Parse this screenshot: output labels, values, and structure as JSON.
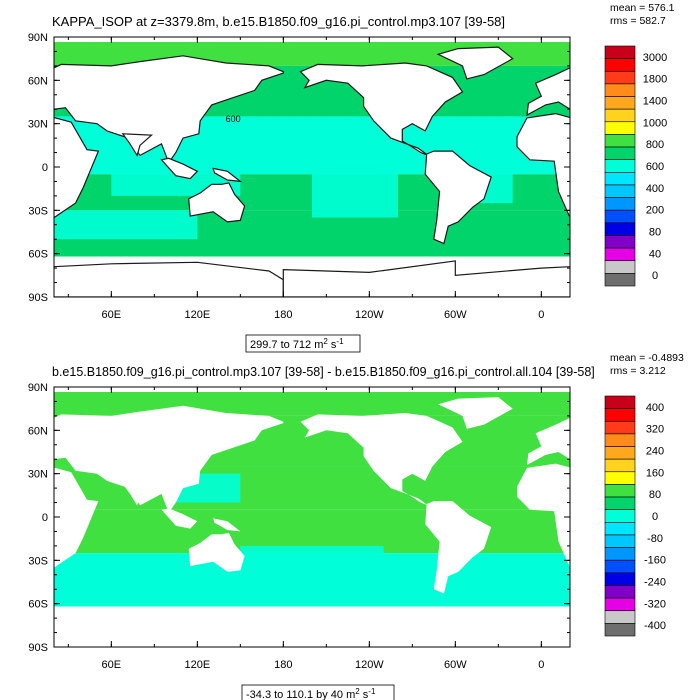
{
  "chart_data": [
    {
      "type": "heatmap",
      "title": "KAPPA_ISOP at z=3379.8m, b.e15.B1850.f09_g16.pi_control.mp3.107 [39-58]",
      "stats": {
        "mean": "mean = 576.1",
        "rms": "rms = 582.7"
      },
      "x_ticks": [
        "60E",
        "120E",
        "180",
        "120W",
        "60W",
        "0"
      ],
      "y_ticks": [
        "90N",
        "60N",
        "30N",
        "0",
        "30S",
        "60S",
        "90S"
      ],
      "contour_label": "600",
      "range_label": "299.7 to 712 m",
      "range_unit_exp": "2",
      "range_unit_s": " s",
      "range_unit_s_exp": "-1",
      "colorbar": {
        "labels": [
          "3000",
          "1800",
          "1400",
          "1000",
          "800",
          "600",
          "400",
          "200",
          "80",
          "40",
          "0"
        ],
        "colors": [
          "#c8001a",
          "#ff0000",
          "#ff3b1a",
          "#ff8c1a",
          "#ffa81e",
          "#ffd21e",
          "#ffff00",
          "#40e040",
          "#00d46a",
          "#00ffd8",
          "#00e6ff",
          "#00c8ff",
          "#0096ff",
          "#0050ff",
          "#0000e6",
          "#8000c8",
          "#e600e6",
          "#c8c8c8",
          "#6e6e6e"
        ]
      },
      "dominant_values": "mostly 400-600 (cyan) and 600-800 (green) over ocean basins; land masked white"
    },
    {
      "type": "heatmap",
      "title": "b.e15.B1850.f09_g16.pi_control.mp3.107 [39-58] - b.e15.B1850.f09_g16.pi_control.all.104 [39-58]",
      "stats": {
        "mean": "mean = -0.4893",
        "rms": "rms = 3.212"
      },
      "x_ticks": [
        "60E",
        "120E",
        "180",
        "120W",
        "60W",
        "0"
      ],
      "y_ticks": [
        "90N",
        "60N",
        "30N",
        "0",
        "30S",
        "60S",
        "90S"
      ],
      "range_label": "-34.3 to 110.1 by 40 m",
      "range_unit_exp": "2",
      "range_unit_s": " s",
      "range_unit_s_exp": "-1",
      "colorbar": {
        "labels": [
          "400",
          "320",
          "240",
          "160",
          "80",
          "0",
          "-80",
          "-160",
          "-240",
          "-320",
          "-400"
        ],
        "colors": [
          "#c8001a",
          "#ff0000",
          "#ff3b1a",
          "#ff8c1a",
          "#ffa81e",
          "#ffd21e",
          "#ffff00",
          "#40e040",
          "#00d46a",
          "#00ffd8",
          "#00e6ff",
          "#00c8ff",
          "#0096ff",
          "#0050ff",
          "#0000e6",
          "#8000c8",
          "#e600e6",
          "#c8c8c8",
          "#6e6e6e"
        ]
      },
      "dominant_values": "mostly 0 to 40 (green) and -40 to 0 (cyan); land masked white"
    }
  ]
}
